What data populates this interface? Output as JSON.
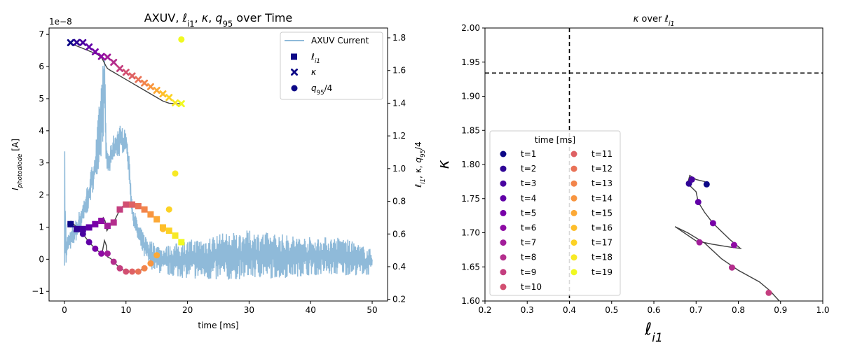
{
  "chart_data": [
    {
      "type": "line+scatter",
      "title_parts": [
        "AXUV, ",
        "ℓ",
        "i1",
        ", ",
        "κ",
        ", ",
        "q",
        "95",
        " over Time"
      ],
      "xlabel": "time [ms]",
      "ylabel_left": "I",
      "ylabel_left_sub": "photodiode",
      "ylabel_left_unit": " [A]",
      "ylabel_right_parts": [
        "ℓ",
        "i1",
        ", κ, ",
        "q",
        "95",
        "/4"
      ],
      "offset_text": "1e−8",
      "xlim": [
        -2.5,
        52.5
      ],
      "ylim_left": [
        -1.3,
        7.2
      ],
      "ylim_right": [
        0.19,
        1.86
      ],
      "x_ticks": [
        0,
        10,
        20,
        30,
        40,
        50
      ],
      "x_tick_labels": [
        "0",
        "10",
        "20",
        "30",
        "40",
        "50"
      ],
      "y_left_ticks": [
        -1,
        0,
        1,
        2,
        3,
        4,
        5,
        6,
        7
      ],
      "y_left_tick_labels": [
        "−1",
        "0",
        "1",
        "2",
        "3",
        "4",
        "5",
        "6",
        "7"
      ],
      "y_right_ticks": [
        0.2,
        0.4,
        0.6,
        0.8,
        1.0,
        1.2,
        1.4,
        1.6,
        1.8
      ],
      "y_right_tick_labels": [
        "0.2",
        "0.4",
        "0.6",
        "0.8",
        "1.0",
        "1.2",
        "1.4",
        "1.6",
        "1.8"
      ],
      "legend": {
        "position": "upper right",
        "entries": [
          {
            "label": "AXUV Current",
            "marker": "line"
          },
          {
            "label_parts": [
              "ℓ",
              "i1"
            ],
            "marker": "square"
          },
          {
            "label_parts": [
              "κ"
            ],
            "marker": "x"
          },
          {
            "label_parts": [
              "q",
              "95",
              "/4"
            ],
            "marker": "circle"
          }
        ]
      },
      "axuv_envelope": {
        "x": [
          0,
          0.3,
          0.5,
          1,
          2,
          3,
          4,
          5,
          6,
          6.5,
          6.8,
          7.2,
          8,
          9,
          10,
          10.5,
          11,
          12,
          13,
          14,
          15,
          16,
          20,
          25,
          30,
          35,
          40,
          45,
          50
        ],
        "low": [
          -0.2,
          -0.3,
          0.2,
          0.3,
          0.6,
          1.0,
          1.6,
          2.4,
          3.2,
          4.0,
          2.8,
          2.6,
          3.0,
          3.2,
          3.4,
          2.5,
          1.2,
          0.5,
          0.0,
          -0.3,
          -0.4,
          -0.5,
          -0.6,
          -0.7,
          -0.6,
          -0.6,
          -0.5,
          -0.5,
          -0.5
        ],
        "high": [
          4.0,
          0.6,
          0.8,
          0.9,
          1.3,
          1.8,
          2.5,
          3.4,
          5.6,
          6.6,
          3.7,
          3.3,
          3.9,
          4.2,
          4.0,
          3.2,
          1.8,
          1.1,
          0.8,
          0.6,
          0.5,
          0.4,
          0.6,
          0.8,
          0.9,
          0.8,
          0.7,
          0.7,
          0.3
        ]
      },
      "time_points": [
        1,
        2,
        3,
        4,
        5,
        6,
        7,
        8,
        9,
        10,
        11,
        12,
        13,
        14,
        15,
        16,
        17,
        18,
        19
      ],
      "li1": [
        0.66,
        0.63,
        0.63,
        0.64,
        0.66,
        0.68,
        0.65,
        0.67,
        0.75,
        0.78,
        0.78,
        0.77,
        0.75,
        0.72,
        0.69,
        0.64,
        0.62,
        0.59,
        0.55
      ],
      "kappa": [
        1.77,
        1.772,
        1.771,
        1.744,
        1.714,
        1.686,
        1.682,
        1.65,
        1.612,
        1.589,
        1.567,
        1.545,
        1.523,
        1.501,
        1.479,
        1.457,
        1.435,
        1.402,
        1.397
      ],
      "q95_over_4": [
        0.66,
        0.63,
        0.6,
        0.55,
        0.51,
        0.48,
        0.48,
        0.43,
        0.39,
        0.37,
        0.37,
        0.37,
        0.39,
        0.42,
        0.47,
        0.63,
        0.75,
        0.97,
        1.79
      ],
      "kappa_fine": {
        "x": [
          0.7,
          5.3,
          6.0,
          6.3,
          6.7,
          7.0,
          7.5,
          8.0,
          9.0,
          10.0,
          11.0,
          12.0,
          13.0,
          14.0,
          15.0,
          16.0,
          17.0,
          18.0,
          19.0
        ],
        "y": [
          1.77,
          1.7,
          1.68,
          1.66,
          1.63,
          1.612,
          1.6,
          1.589,
          1.567,
          1.545,
          1.523,
          1.501,
          1.479,
          1.457,
          1.435,
          1.413,
          1.4,
          1.397,
          1.397
        ]
      },
      "q95_fine": {
        "x": [
          1,
          2,
          3,
          4,
          5,
          6,
          6.2,
          6.5,
          6.8,
          7,
          7.5,
          8,
          9,
          10,
          11,
          12,
          13
        ],
        "y": [
          0.66,
          0.63,
          0.6,
          0.55,
          0.51,
          0.48,
          0.5,
          0.56,
          0.53,
          0.46,
          0.45,
          0.43,
          0.39,
          0.37,
          0.37,
          0.37,
          0.39
        ]
      },
      "li1_fine": {
        "x": [
          1,
          2,
          3,
          4,
          5,
          6,
          6.3,
          6.6,
          6.9,
          7.2,
          7.6,
          8,
          9,
          9.5,
          10,
          10.5,
          11
        ],
        "y": [
          0.68,
          0.64,
          0.63,
          0.64,
          0.66,
          0.68,
          0.7,
          0.68,
          0.62,
          0.64,
          0.66,
          0.67,
          0.75,
          0.77,
          0.78,
          0.78,
          0.78
        ]
      }
    },
    {
      "type": "scatter",
      "title_parts": [
        "κ",
        " over ",
        "ℓ",
        "i1"
      ],
      "xlabel_parts": [
        "ℓ",
        "i1"
      ],
      "ylabel": "κ",
      "xlim": [
        0.2,
        1.0
      ],
      "ylim": [
        1.6,
        2.0
      ],
      "x_ticks": [
        0.2,
        0.3,
        0.4,
        0.5,
        0.6,
        0.7,
        0.8,
        0.9,
        1.0
      ],
      "x_tick_labels": [
        "0.2",
        "0.3",
        "0.4",
        "0.5",
        "0.6",
        "0.7",
        "0.8",
        "0.9",
        "1.0"
      ],
      "y_ticks": [
        1.6,
        1.65,
        1.7,
        1.75,
        1.8,
        1.85,
        1.9,
        1.95,
        2.0
      ],
      "y_tick_labels": [
        "1.60",
        "1.65",
        "1.70",
        "1.75",
        "1.80",
        "1.85",
        "1.90",
        "1.95",
        "2.00"
      ],
      "vline_x": 0.4,
      "hline_y": 1.934,
      "points": {
        "x": [
          0.725,
          0.683,
          0.69,
          0.705,
          0.74,
          0.79,
          0.708,
          0.785,
          0.872
        ],
        "y": [
          1.771,
          1.772,
          1.778,
          1.745,
          1.714,
          1.682,
          1.686,
          1.649,
          1.612
        ],
        "t": [
          1,
          2,
          3,
          4,
          5,
          6,
          7,
          8,
          9
        ]
      },
      "trajectory": {
        "x": [
          0.73,
          0.72,
          0.7,
          0.685,
          0.68,
          0.7,
          0.705,
          0.72,
          0.74,
          0.78,
          0.805,
          0.78,
          0.74,
          0.7,
          0.65,
          0.68,
          0.72,
          0.76,
          0.8,
          0.85,
          0.875,
          0.9
        ],
        "y": [
          1.771,
          1.775,
          1.778,
          1.784,
          1.772,
          1.76,
          1.745,
          1.73,
          1.714,
          1.69,
          1.677,
          1.679,
          1.683,
          1.688,
          1.709,
          1.7,
          1.685,
          1.662,
          1.645,
          1.628,
          1.615,
          1.598
        ]
      },
      "legend": {
        "title": "time [ms]",
        "position": "lower left",
        "entries": [
          "t=1",
          "t=2",
          "t=3",
          "t=4",
          "t=5",
          "t=6",
          "t=7",
          "t=8",
          "t=9",
          "t=10",
          "t=11",
          "t=12",
          "t=13",
          "t=14",
          "t=15",
          "t=16",
          "t=17",
          "t=18",
          "t=19"
        ]
      }
    }
  ],
  "colors": {
    "axuv": "#8fbad9",
    "trend_line": "#404040",
    "dashed": "#000000",
    "plasma_19": [
      "#0d0887",
      "#2f0596",
      "#4903a0",
      "#6100a7",
      "#7801a8",
      "#8e0ca4",
      "#a21d9a",
      "#b42e8d",
      "#c43e7f",
      "#d24f71",
      "#de6164",
      "#e97257",
      "#f2844b",
      "#f89540",
      "#fca936",
      "#febe2a",
      "#fcd225",
      "#f7e925",
      "#f0f921"
    ]
  }
}
